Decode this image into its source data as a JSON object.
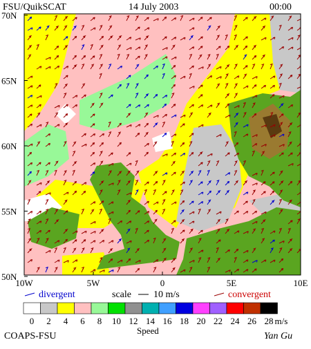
{
  "header": {
    "product": "FSU/QuikSCAT",
    "date": "14 July 2003",
    "time": "00:00"
  },
  "map": {
    "lat_labels": [
      "70N",
      "65N",
      "60N",
      "55N",
      "50N"
    ],
    "lon_labels": [
      "10W",
      "5W",
      "0",
      "5E",
      "10E"
    ]
  },
  "legend": {
    "divergent": "divergent",
    "scale": "scale",
    "scale_value": "10 m/s",
    "convergent": "convergent",
    "divergent_color": "#0000cc",
    "convergent_color": "#990000"
  },
  "speed_scale": {
    "labels": [
      "0",
      "2",
      "4",
      "6",
      "8",
      "10",
      "12",
      "14",
      "16",
      "18",
      "20",
      "22",
      "24",
      "26",
      "28"
    ],
    "colors": [
      "#ffffff",
      "#c8c8c8",
      "#ffff00",
      "#ffc0c0",
      "#98f898",
      "#00e000",
      "#909090",
      "#00b0b0",
      "#40a0ff",
      "#0000e0",
      "#ff40ff",
      "#a060ff",
      "#ff0000",
      "#c03000",
      "#000000"
    ],
    "unit": "m/s",
    "title": "Speed"
  },
  "footer": {
    "left": "COAPS-FSU",
    "right": "Yan Gu"
  }
}
